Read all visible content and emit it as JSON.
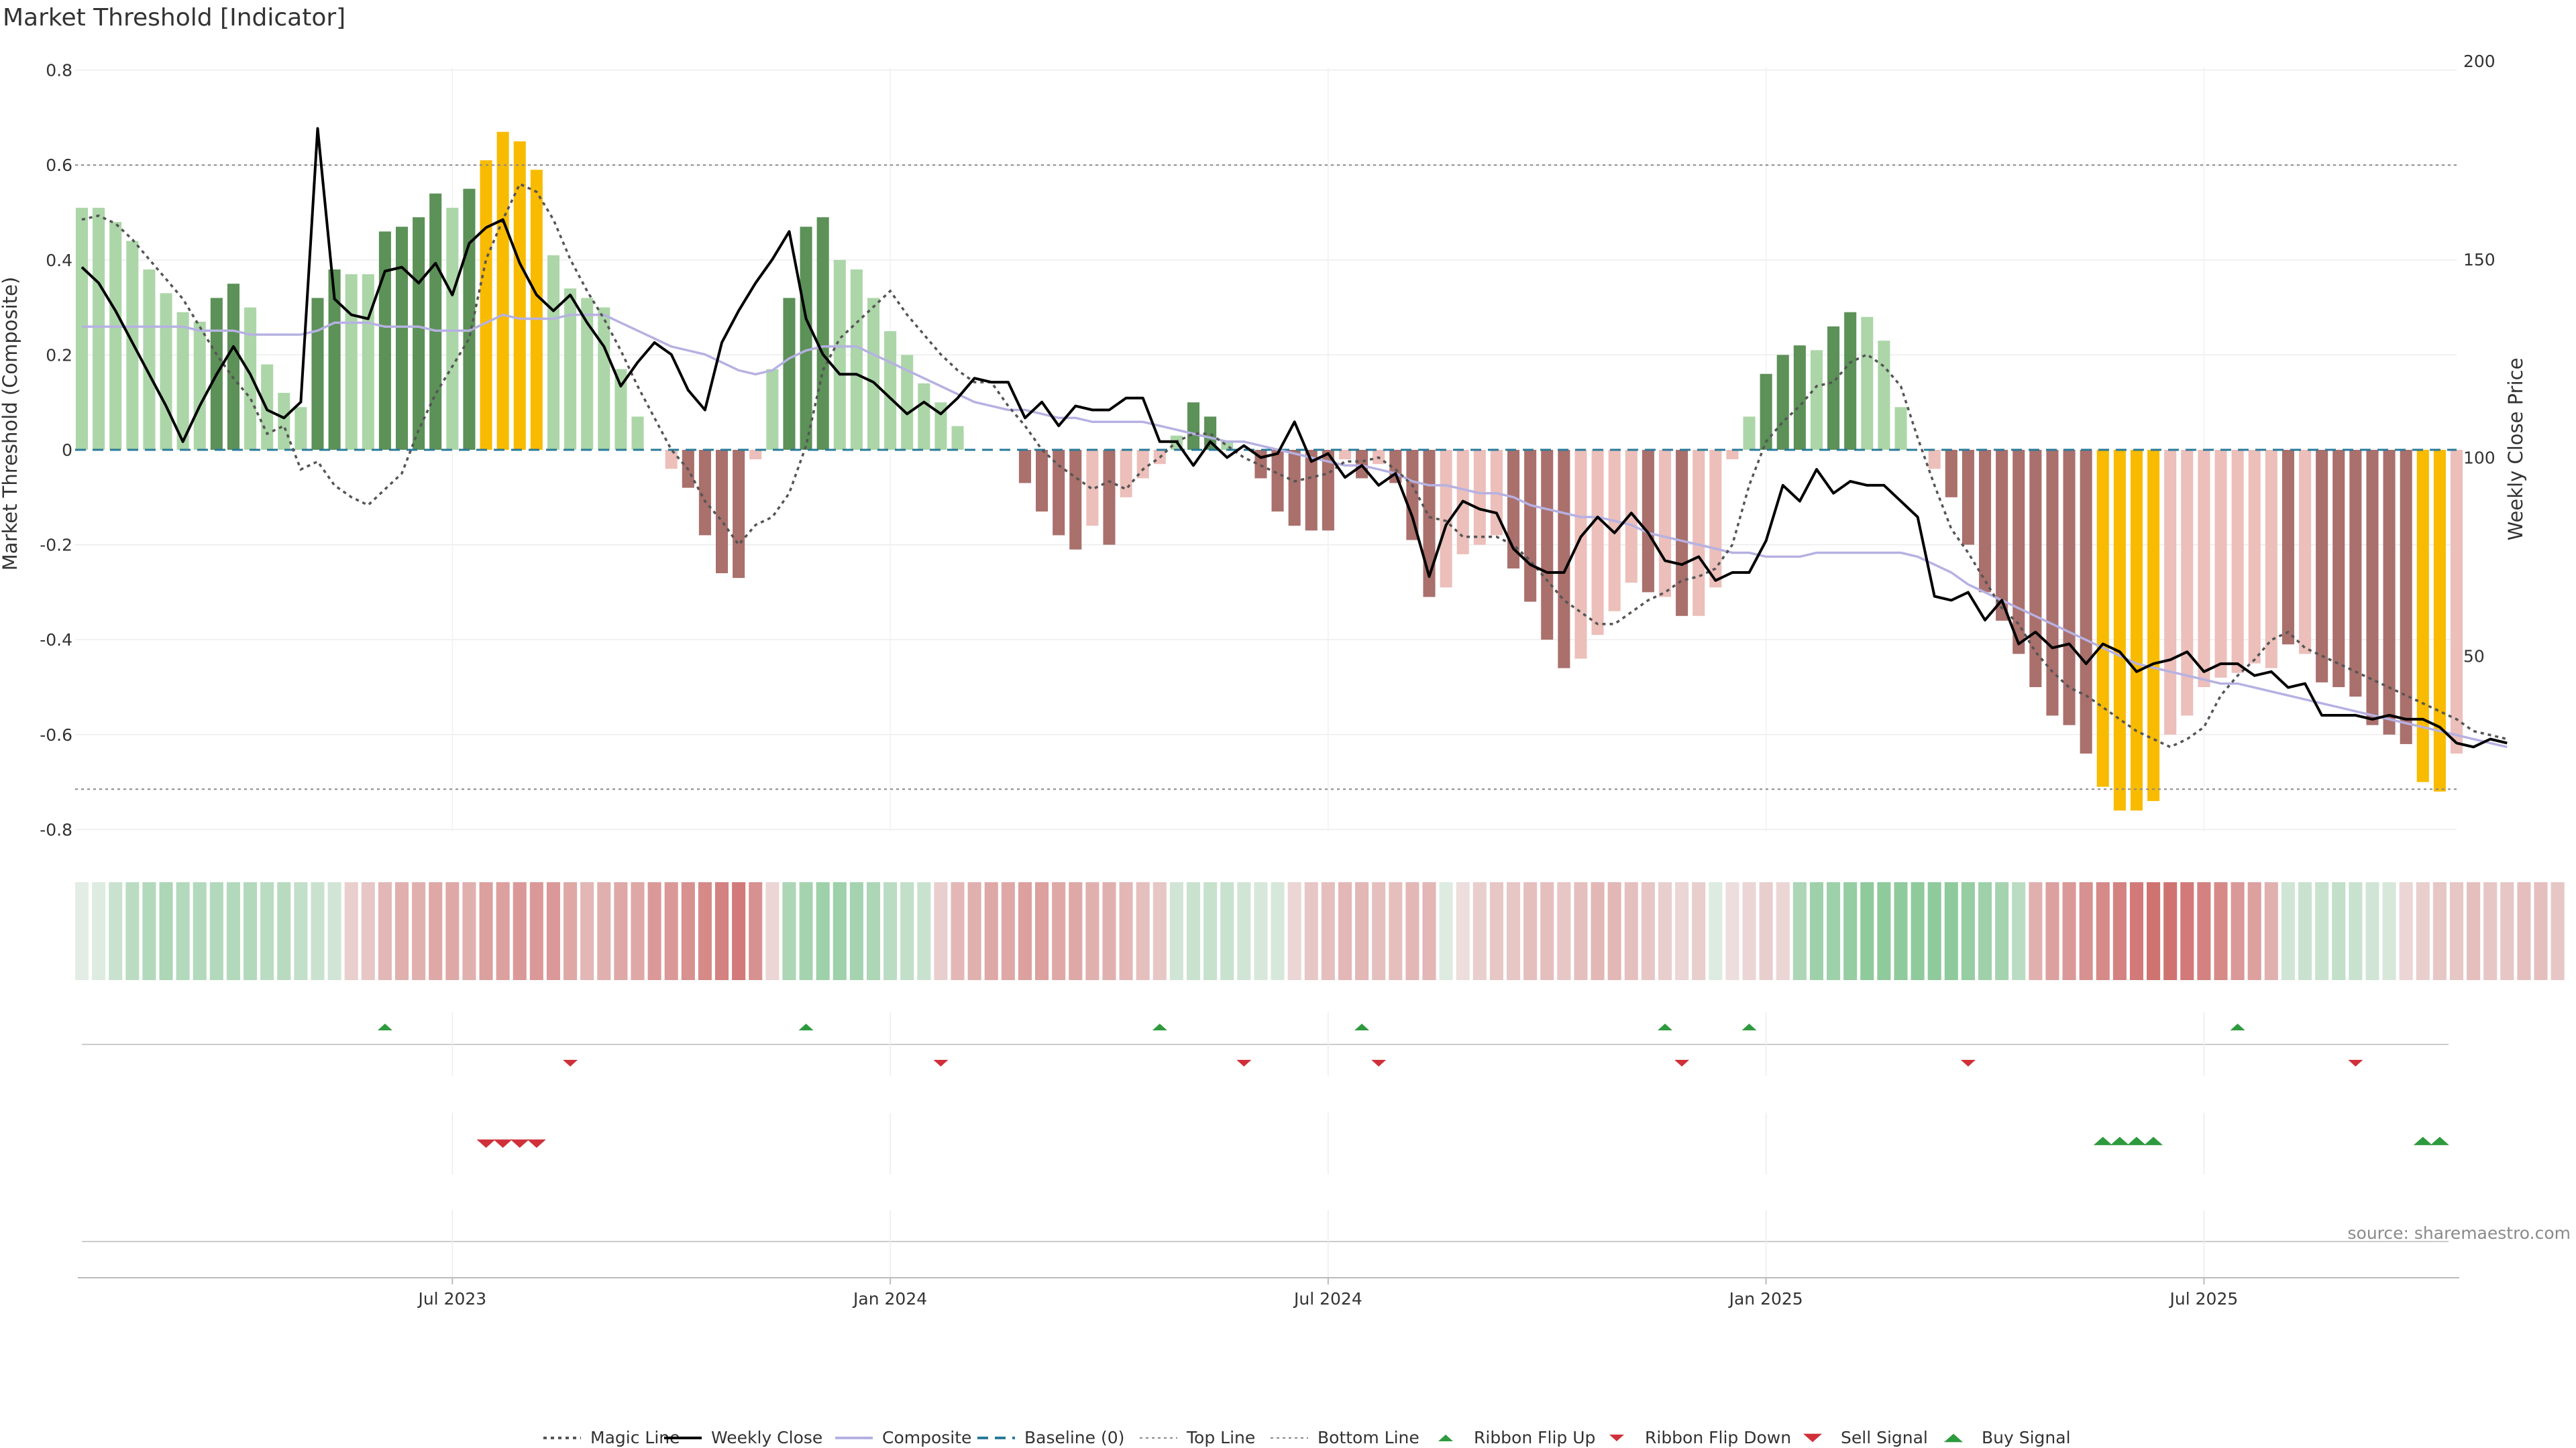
{
  "chart_data": {
    "type": "bar",
    "title": "Market Threshold [Indicator]",
    "ylabel_left": "Market Threshold (Composite)",
    "ylabel_right": "Weekly Close Price",
    "source": "source: sharemaestro.com",
    "left_ylim": [
      -0.8,
      0.8
    ],
    "right_ylim": [
      0,
      200
    ],
    "left_ticks": [
      "0.8",
      "0.6",
      "0.4",
      "0.2",
      "0",
      "-0.2",
      "-0.4",
      "-0.6",
      "-0.8"
    ],
    "right_ticks": [
      "200",
      "150",
      "100",
      "50"
    ],
    "x_ticks": [
      {
        "label": "Jul 2023",
        "week": 22
      },
      {
        "label": "Jan 2024",
        "week": 48
      },
      {
        "label": "Jul 2024",
        "week": 74
      },
      {
        "label": "Jan 2025",
        "week": 100
      },
      {
        "label": "Jul 2025",
        "week": 126
      }
    ],
    "top_line": 0.6,
    "bottom_line": -0.715,
    "grid": true,
    "legend_position": "bottom",
    "colors": {
      "pos_light": "#acd6a8",
      "pos_dark": "#5c9158",
      "neg_light": "#ecbfba",
      "neg_dark": "#aa706c",
      "extreme": "#f8bb00",
      "weekly_close": "#000000",
      "magic_line": "#555555",
      "composite": "#b6b1e2",
      "baseline": "#2a7a9a",
      "flip_up": "#2e9a3e",
      "flip_down": "#d0303a"
    },
    "composite_bars": [
      0.51,
      0.51,
      0.48,
      0.44,
      0.38,
      0.33,
      0.29,
      0.27,
      0.32,
      0.35,
      0.3,
      0.18,
      0.12,
      0.09,
      0.32,
      0.38,
      0.37,
      0.37,
      0.46,
      0.47,
      0.49,
      0.54,
      0.51,
      0.55,
      0.61,
      0.67,
      0.65,
      0.59,
      0.41,
      0.34,
      0.32,
      0.3,
      0.17,
      0.07,
      0,
      -0.04,
      -0.08,
      -0.18,
      -0.26,
      -0.27,
      -0.02,
      0.17,
      0.32,
      0.47,
      0.49,
      0.4,
      0.38,
      0.32,
      0.25,
      0.2,
      0.14,
      0.1,
      0.05,
      0,
      0,
      0,
      -0.07,
      -0.13,
      -0.18,
      -0.21,
      -0.16,
      -0.2,
      -0.1,
      -0.06,
      -0.03,
      0.03,
      0.1,
      0.07,
      0.02,
      0,
      -0.06,
      -0.13,
      -0.16,
      -0.17,
      -0.17,
      -0.02,
      -0.06,
      -0.03,
      -0.07,
      -0.19,
      -0.31,
      -0.29,
      -0.22,
      -0.2,
      -0.18,
      -0.25,
      -0.32,
      -0.4,
      -0.46,
      -0.44,
      -0.39,
      -0.34,
      -0.28,
      -0.3,
      -0.31,
      -0.35,
      -0.35,
      -0.29,
      -0.02,
      0.07,
      0.16,
      0.2,
      0.22,
      0.21,
      0.26,
      0.29,
      0.28,
      0.23,
      0.09,
      0,
      -0.04,
      -0.1,
      -0.2,
      -0.3,
      -0.36,
      -0.43,
      -0.5,
      -0.56,
      -0.58,
      -0.64,
      -0.71,
      -0.76,
      -0.76,
      -0.74,
      -0.6,
      -0.56,
      -0.5,
      -0.48,
      -0.47,
      -0.45,
      -0.46,
      -0.41,
      -0.43,
      -0.49,
      -0.5,
      -0.52,
      -0.58,
      -0.6,
      -0.62,
      -0.7,
      -0.72,
      -0.64
    ],
    "bar_kinds": [
      "pl",
      "pl",
      "pl",
      "pl",
      "pl",
      "pl",
      "pl",
      "pl",
      "pd",
      "pd",
      "pl",
      "pl",
      "pl",
      "pl",
      "pd",
      "pd",
      "pl",
      "pl",
      "pd",
      "pd",
      "pd",
      "pd",
      "pl",
      "pd",
      "ex",
      "ex",
      "ex",
      "ex",
      "pl",
      "pl",
      "pl",
      "pl",
      "pl",
      "pl",
      "pl",
      "nl",
      "nd",
      "nd",
      "nd",
      "nd",
      "nl",
      "pl",
      "pd",
      "pd",
      "pd",
      "pl",
      "pl",
      "pl",
      "pl",
      "pl",
      "pl",
      "pl",
      "pl",
      "pl",
      "pl",
      "pl",
      "nd",
      "nd",
      "nd",
      "nd",
      "nl",
      "nd",
      "nl",
      "nl",
      "nl",
      "pl",
      "pd",
      "pd",
      "pl",
      "pl",
      "nd",
      "nd",
      "nd",
      "nd",
      "nd",
      "nl",
      "nd",
      "nl",
      "nd",
      "nd",
      "nd",
      "nl",
      "nl",
      "nl",
      "nl",
      "nd",
      "nd",
      "nd",
      "nd",
      "nl",
      "nl",
      "nl",
      "nl",
      "nd",
      "nl",
      "nd",
      "nl",
      "nl",
      "nl",
      "pl",
      "pd",
      "pd",
      "pd",
      "pl",
      "pd",
      "pd",
      "pl",
      "pl",
      "pl",
      "pl",
      "nl",
      "nd",
      "nd",
      "nd",
      "nd",
      "nd",
      "nd",
      "nd",
      "nd",
      "nd",
      "ex",
      "ex",
      "ex",
      "ex",
      "nl",
      "nl",
      "nl",
      "nl",
      "nl",
      "nl",
      "nl",
      "nd",
      "nl",
      "nd",
      "nd",
      "nd",
      "nd",
      "nd",
      "nd",
      "ex",
      "ex",
      "nl"
    ],
    "weekly_close": [
      148,
      144,
      137,
      129,
      121,
      113,
      104,
      113,
      121,
      128,
      121,
      112,
      110,
      114,
      183,
      140,
      136,
      135,
      147,
      148,
      144,
      149,
      141,
      154,
      158,
      160,
      149,
      141,
      137,
      141,
      134,
      128,
      118,
      124,
      129,
      126,
      117,
      112,
      129,
      137,
      144,
      150,
      157,
      135,
      126,
      121,
      121,
      119,
      115,
      111,
      114,
      111,
      115,
      120,
      119,
      119,
      110,
      114,
      108,
      113,
      112,
      112,
      115,
      115,
      104,
      104,
      98,
      104,
      100,
      103,
      100,
      101,
      109,
      99,
      101,
      95,
      98,
      93,
      96,
      85,
      70,
      83,
      89,
      87,
      86,
      77,
      73,
      71,
      71,
      80,
      85,
      81,
      86,
      81,
      74,
      73,
      75,
      69,
      71,
      71,
      79,
      93,
      89,
      97,
      91,
      94,
      93,
      93,
      89,
      85,
      65,
      64,
      66,
      59,
      64,
      53,
      56,
      52,
      53,
      48,
      53,
      51,
      46,
      48,
      49,
      51,
      46,
      48,
      48,
      45,
      46,
      42,
      43,
      35,
      35,
      35,
      34,
      35,
      34,
      34,
      32,
      28,
      27,
      29,
      28
    ],
    "magic_line": [
      160,
      161,
      159,
      155,
      150,
      145,
      140,
      133,
      126,
      120,
      115,
      106,
      108,
      97,
      99,
      93,
      90,
      88,
      92,
      96,
      107,
      116,
      123,
      130,
      150,
      160,
      169,
      167,
      160,
      150,
      142,
      135,
      127,
      118,
      110,
      102,
      97,
      89,
      84,
      78,
      83,
      85,
      91,
      103,
      122,
      130,
      134,
      138,
      142,
      136,
      131,
      126,
      122,
      119,
      119,
      113,
      108,
      102,
      98,
      95,
      92,
      94,
      92,
      97,
      100,
      104,
      106,
      106,
      103,
      100,
      98,
      96,
      94,
      95,
      96,
      99,
      99,
      100,
      97,
      93,
      85,
      84,
      80,
      80,
      80,
      78,
      74,
      69,
      64,
      61,
      58,
      58,
      61,
      64,
      66,
      69,
      70,
      72,
      78,
      93,
      104,
      109,
      113,
      118,
      119,
      124,
      126,
      123,
      118,
      105,
      93,
      82,
      76,
      69,
      62,
      58,
      51,
      46,
      42,
      40,
      37,
      34,
      31,
      29,
      27,
      29,
      32,
      40,
      45,
      49,
      54,
      56,
      52,
      50,
      48,
      46,
      44,
      42,
      40,
      38,
      36,
      34,
      31,
      30,
      29
    ],
    "composite_line": [
      133,
      133,
      133,
      133,
      133,
      133,
      133,
      132,
      132,
      132,
      131,
      131,
      131,
      131,
      132,
      134,
      134,
      134,
      133,
      133,
      133,
      132,
      132,
      132,
      134,
      136,
      135,
      135,
      135,
      136,
      136,
      136,
      134,
      132,
      130,
      128,
      127,
      126,
      124,
      122,
      121,
      122,
      125,
      127,
      128,
      128,
      128,
      126,
      124,
      122,
      120,
      118,
      116,
      114,
      113,
      112,
      112,
      111,
      110,
      110,
      109,
      109,
      109,
      109,
      108,
      107,
      106,
      105,
      104,
      104,
      103,
      102,
      101,
      100,
      99,
      98,
      98,
      97,
      96,
      94,
      93,
      93,
      92,
      91,
      91,
      90,
      88,
      87,
      86,
      85,
      85,
      84,
      83,
      81,
      80,
      79,
      78,
      77,
      76,
      76,
      75,
      75,
      75,
      76,
      76,
      76,
      76,
      76,
      76,
      75,
      73,
      71,
      68,
      66,
      64,
      62,
      60,
      58,
      56,
      54,
      52,
      50,
      48,
      47,
      46,
      45,
      44,
      43,
      43,
      42,
      41,
      40,
      39,
      38,
      37,
      36,
      35,
      34,
      33,
      32,
      31,
      30,
      29,
      28,
      27
    ],
    "ribbon": [
      0.12,
      0.15,
      0.3,
      0.4,
      0.45,
      0.5,
      0.45,
      0.45,
      0.45,
      0.45,
      0.45,
      0.4,
      0.42,
      0.35,
      0.3,
      0.25,
      -0.25,
      -0.3,
      -0.4,
      -0.45,
      -0.45,
      -0.5,
      -0.5,
      -0.45,
      -0.55,
      -0.55,
      -0.6,
      -0.6,
      -0.6,
      -0.5,
      -0.4,
      -0.45,
      -0.5,
      -0.5,
      -0.6,
      -0.6,
      -0.65,
      -0.7,
      -0.75,
      -0.8,
      -0.65,
      -0.2,
      0.5,
      0.55,
      0.6,
      0.6,
      0.55,
      0.5,
      0.4,
      0.35,
      0.3,
      -0.25,
      -0.4,
      -0.45,
      -0.5,
      -0.5,
      -0.55,
      -0.55,
      -0.5,
      -0.5,
      -0.45,
      -0.45,
      -0.4,
      -0.35,
      -0.3,
      0.25,
      0.3,
      0.32,
      0.3,
      0.25,
      0.2,
      0.2,
      -0.2,
      -0.3,
      -0.35,
      -0.4,
      -0.4,
      -0.35,
      -0.35,
      -0.4,
      -0.4,
      0.15,
      -0.15,
      -0.25,
      -0.3,
      -0.3,
      -0.35,
      -0.35,
      -0.3,
      -0.35,
      -0.4,
      -0.4,
      -0.35,
      -0.3,
      -0.25,
      -0.2,
      -0.25,
      0.15,
      -0.15,
      -0.2,
      -0.25,
      -0.2,
      0.5,
      0.6,
      0.6,
      0.65,
      0.7,
      0.7,
      0.7,
      0.7,
      0.7,
      0.7,
      0.65,
      0.6,
      0.55,
      0.4,
      -0.45,
      -0.55,
      -0.6,
      -0.65,
      -0.7,
      -0.75,
      -0.8,
      -0.85,
      -0.85,
      -0.8,
      -0.75,
      -0.7,
      -0.6,
      -0.55,
      -0.45,
      0.25,
      0.3,
      0.3,
      0.35,
      0.3,
      0.25,
      0.2,
      -0.2,
      -0.25,
      -0.3,
      -0.3,
      -0.35,
      -0.3,
      -0.3,
      -0.35,
      -0.35,
      -0.3
    ],
    "ribbon_flip_up": [
      18,
      43,
      64,
      76,
      94,
      99,
      128
    ],
    "ribbon_flip_down": [
      29,
      51,
      69,
      77,
      95,
      112,
      135
    ],
    "sell_signal": [
      24,
      25,
      26,
      27
    ],
    "buy_signal": [
      120,
      121,
      122,
      123,
      139,
      140
    ],
    "legend": [
      {
        "label": "Magic Line",
        "kind": "dotted",
        "color": "#555555"
      },
      {
        "label": "Weekly Close",
        "kind": "solid",
        "color": "#000000"
      },
      {
        "label": "Composite",
        "kind": "solid",
        "color": "#b6b1e2"
      },
      {
        "label": "Baseline (0)",
        "kind": "dashed",
        "color": "#2a7a9a"
      },
      {
        "label": "Top Line",
        "kind": "dotted-light",
        "color": "#888888"
      },
      {
        "label": "Bottom Line",
        "kind": "dotted-light",
        "color": "#888888"
      },
      {
        "label": "Ribbon Flip Up",
        "kind": "tri-up-small",
        "color": "#2e9a3e"
      },
      {
        "label": "Ribbon Flip Down",
        "kind": "tri-down-small",
        "color": "#d0303a"
      },
      {
        "label": "Sell Signal",
        "kind": "tri-down",
        "color": "#d0303a"
      },
      {
        "label": "Buy Signal",
        "kind": "tri-up",
        "color": "#2e9a3e"
      }
    ]
  }
}
